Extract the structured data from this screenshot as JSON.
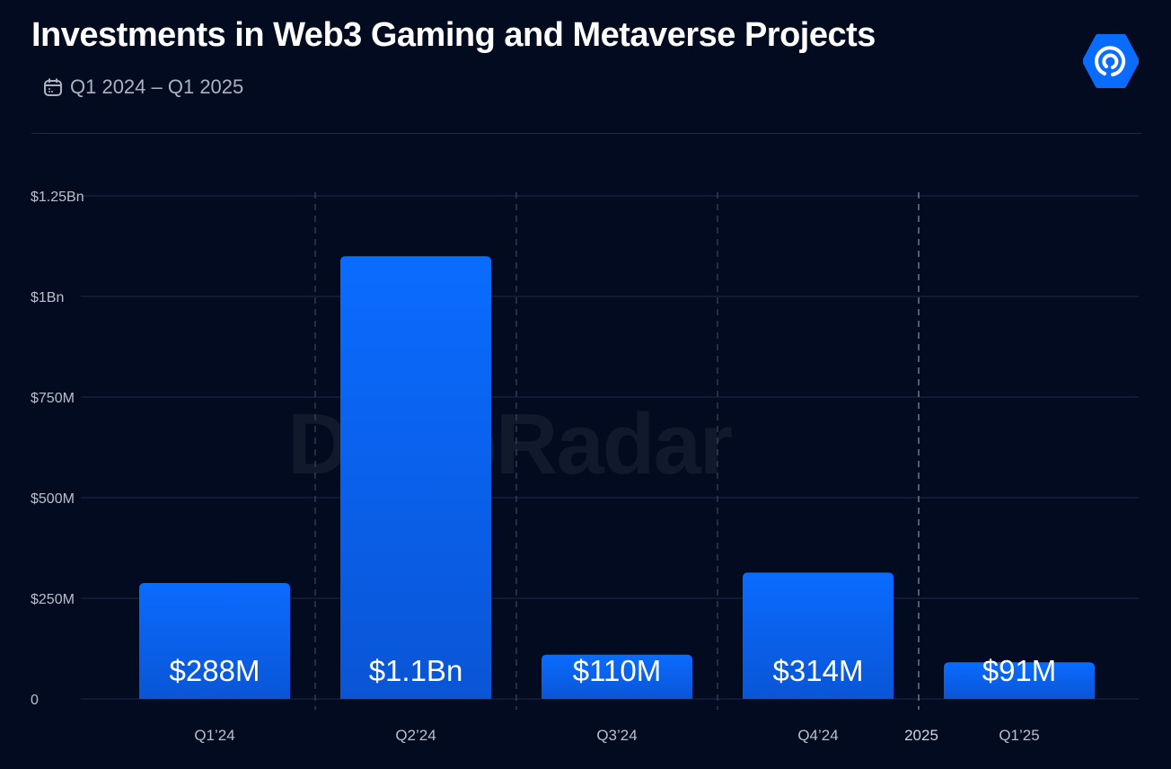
{
  "header": {
    "title": "Investments in Web3 Gaming and Metaverse Projects",
    "date_range": "Q1 2024 – Q1 2025"
  },
  "watermark": "DappRadar",
  "colors": {
    "background": "#030b20",
    "bar_top": "#0a6cff",
    "bar_bottom": "#0a55d6",
    "grid": "#1c2a48"
  },
  "chart_data": {
    "type": "bar",
    "title": "Investments in Web3 Gaming and Metaverse Projects",
    "categories": [
      "Q1’24",
      "Q2’24",
      "Q3’24",
      "Q4’24",
      "Q1’25"
    ],
    "values": [
      288,
      1100,
      110,
      314,
      91
    ],
    "unit": "USD millions",
    "data_labels": [
      "$288M",
      "$1.1Bn",
      "$110M",
      "$314M",
      "$91M"
    ],
    "ylim": [
      0,
      1250
    ],
    "yticks": [
      0,
      250,
      500,
      750,
      1000,
      1250
    ],
    "ytick_labels": [
      "0",
      "$250M",
      "$500M",
      "$750M",
      "$1Bn",
      "$1.25Bn"
    ],
    "annotations": [
      "2025"
    ],
    "grid": true,
    "xlabel": "",
    "ylabel": ""
  }
}
